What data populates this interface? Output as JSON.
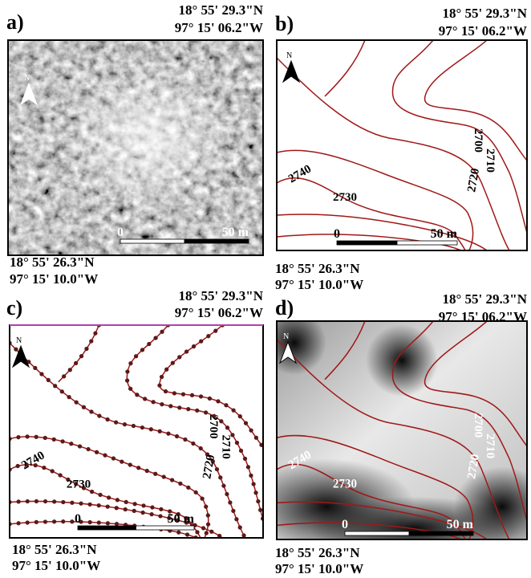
{
  "panels": [
    {
      "label": "a)",
      "top_right": [
        "18° 55' 29.3\"N",
        "97° 15' 06.2\"W"
      ],
      "bottom_left": [
        "18° 55' 26.3\"N",
        "97° 15' 10.0\"W"
      ],
      "north": "N",
      "scale": [
        "0",
        "50 m"
      ],
      "contours": []
    },
    {
      "label": "b)",
      "top_right": [
        "18° 55' 29.3\"N",
        "97° 15' 06.2\"W"
      ],
      "bottom_left": [
        "18° 55' 26.3\"N",
        "97° 15' 10.0\"W"
      ],
      "north": "N",
      "scale": [
        "0",
        "50 m"
      ],
      "contours": [
        "2740",
        "2730",
        "2720",
        "2710",
        "2700"
      ]
    },
    {
      "label": "c)",
      "top_right": [
        "18° 55' 29.3\"N",
        "97° 15' 06.2\"W"
      ],
      "bottom_left": [
        "18° 55' 26.3\"N",
        "97° 15' 10.0\"W"
      ],
      "north": "N",
      "scale": [
        "0",
        "50 m"
      ],
      "contours": [
        "2740",
        "2730",
        "2720",
        "2710",
        "2700"
      ]
    },
    {
      "label": "d)",
      "top_right": [
        "18° 55' 29.3\"N",
        "97° 15' 06.2\"W"
      ],
      "bottom_left": [
        "18° 55' 26.3\"N",
        "97° 15' 10.0\"W"
      ],
      "north": "N",
      "scale": [
        "0",
        "50 m"
      ],
      "contours": [
        "2740",
        "2730",
        "2720",
        "2710",
        "2700"
      ]
    }
  ]
}
